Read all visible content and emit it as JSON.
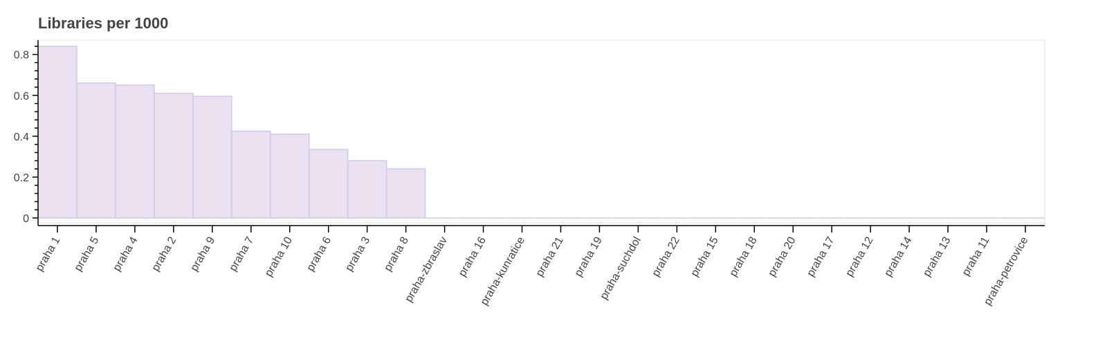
{
  "chart_data": {
    "type": "bar",
    "title": "Libraries per 1000",
    "xlabel": "",
    "ylabel": "",
    "ylim": [
      0,
      0.87
    ],
    "yticks": [
      0,
      0.2,
      0.4,
      0.6,
      0.8
    ],
    "ytick_labels": [
      "0",
      "0.2",
      "0.4",
      "0.6",
      "0.8"
    ],
    "categories": [
      "praha 1",
      "praha 5",
      "praha 4",
      "praha 2",
      "praha 9",
      "praha 7",
      "praha 10",
      "praha 6",
      "praha 3",
      "praha 8",
      "praha-zbraslav",
      "praha 16",
      "praha-kunratice",
      "praha 21",
      "praha 19",
      "praha-suchdol",
      "praha 22",
      "praha 15",
      "praha 18",
      "praha 20",
      "praha 17",
      "praha 12",
      "praha 14",
      "praha 13",
      "praha 11",
      "praha-petrovice"
    ],
    "values": [
      0.84,
      0.66,
      0.65,
      0.61,
      0.595,
      0.425,
      0.41,
      0.335,
      0.28,
      0.24,
      0,
      0,
      0,
      0,
      0,
      0,
      0,
      0,
      0,
      0,
      0,
      0,
      0,
      0,
      0,
      0
    ],
    "colors": {
      "bar_fill": "#ebe1f0",
      "bar_stroke": "#c9cbe6",
      "axis": "#000000",
      "frame": "#e5e5e5",
      "text": "#444444"
    },
    "grid": false,
    "legend": "none"
  }
}
